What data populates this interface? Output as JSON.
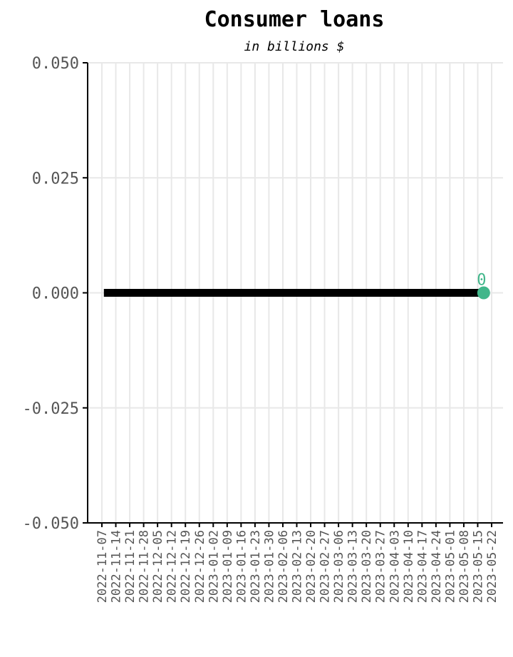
{
  "chart_data": {
    "type": "line",
    "title": "Consumer loans",
    "subtitle": "in billions $",
    "xlabel": "",
    "ylabel": "",
    "categories": [
      "2022-11-07",
      "2022-11-14",
      "2022-11-21",
      "2022-11-28",
      "2022-12-05",
      "2022-12-12",
      "2022-12-19",
      "2022-12-26",
      "2023-01-02",
      "2023-01-09",
      "2023-01-16",
      "2023-01-23",
      "2023-01-30",
      "2023-02-06",
      "2023-02-13",
      "2023-02-20",
      "2023-02-27",
      "2023-03-06",
      "2023-03-13",
      "2023-03-20",
      "2023-03-27",
      "2023-04-03",
      "2023-04-10",
      "2023-04-17",
      "2023-04-24",
      "2023-05-01",
      "2023-05-08",
      "2023-05-15",
      "2023-05-22"
    ],
    "yticks": [
      "0.050",
      "0.025",
      "0.000",
      "-0.025",
      "-0.050"
    ],
    "ylim": [
      -0.05,
      0.05
    ],
    "series": [
      {
        "color": "#000000",
        "x": [
          "2022-11-08",
          "2022-11-15",
          "2022-11-22",
          "2022-11-29",
          "2022-12-06",
          "2022-12-13",
          "2022-12-20",
          "2022-12-27",
          "2023-01-03",
          "2023-01-10",
          "2023-01-17",
          "2023-01-24",
          "2023-01-31",
          "2023-02-07",
          "2023-02-14",
          "2023-02-21",
          "2023-02-28",
          "2023-03-07",
          "2023-03-14",
          "2023-03-21",
          "2023-03-28",
          "2023-04-04",
          "2023-04-11",
          "2023-04-18",
          "2023-04-25",
          "2023-05-02",
          "2023-05-09",
          "2023-05-16"
        ],
        "values": [
          0,
          0,
          0,
          0,
          0,
          0,
          0,
          0,
          0,
          0,
          0,
          0,
          0,
          0,
          0,
          0,
          0,
          0,
          0,
          0,
          0,
          0,
          0,
          0,
          0,
          0,
          0,
          0
        ]
      }
    ],
    "last_point": {
      "x": "2023-05-18",
      "value": 0,
      "label": "0",
      "color": "#41b68a"
    },
    "grid": true,
    "legend": "none"
  }
}
